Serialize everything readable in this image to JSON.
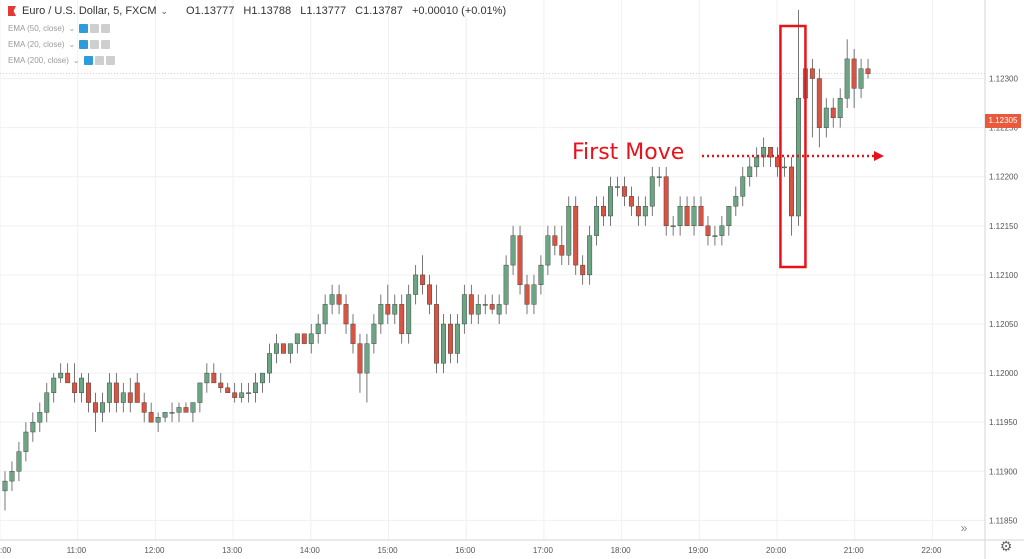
{
  "header": {
    "symbol": "Euro / U.S. Dollar, 5, FXCM",
    "open": "O1.13777",
    "high": "H1.13788",
    "low": "L1.13777",
    "close": "C1.13787",
    "change": "+0.00010 (+0.01%)"
  },
  "indicators": [
    {
      "label": "EMA (50, close)"
    },
    {
      "label": "EMA (20, close)"
    },
    {
      "label": "EMA (200, close)"
    }
  ],
  "annotation": {
    "text": "First Move"
  },
  "price_tag": "1.12305",
  "colors": {
    "up": "#6ba583",
    "down": "#d75442",
    "annotation": "#e8131a",
    "price_tag": "#e95a3c"
  },
  "icons": {
    "scroll_right": "double-chevron-right-icon",
    "settings": "gear-icon"
  },
  "chart_data": {
    "type": "candlestick",
    "y_axis_ticks": [
      "1.12300",
      "1.12250",
      "1.12200",
      "1.12150",
      "1.12100",
      "1.12050",
      "1.12000",
      "1.11950",
      "1.11900",
      "1.11850"
    ],
    "x_axis_ticks": [
      ":00",
      "11:00",
      "12:00",
      "13:00",
      "14:00",
      "15:00",
      "16:00",
      "17:00",
      "18:00",
      "19:00",
      "20:00",
      "21:00",
      "22:00"
    ],
    "ylim": [
      1.1183,
      1.1238
    ],
    "grid": true,
    "candles": [
      {
        "o": 1.1188,
        "h": 1.119,
        "l": 1.1186,
        "c": 1.1189
      },
      {
        "o": 1.1189,
        "h": 1.1191,
        "l": 1.1188,
        "c": 1.119
      },
      {
        "o": 1.119,
        "h": 1.1193,
        "l": 1.1189,
        "c": 1.1192
      },
      {
        "o": 1.1192,
        "h": 1.1195,
        "l": 1.1191,
        "c": 1.1194
      },
      {
        "o": 1.1194,
        "h": 1.1196,
        "l": 1.1193,
        "c": 1.1195
      },
      {
        "o": 1.1195,
        "h": 1.1197,
        "l": 1.1194,
        "c": 1.1196
      },
      {
        "o": 1.1196,
        "h": 1.1199,
        "l": 1.1195,
        "c": 1.1198
      },
      {
        "o": 1.1198,
        "h": 1.12,
        "l": 1.1197,
        "c": 1.11995
      },
      {
        "o": 1.11995,
        "h": 1.1201,
        "l": 1.1199,
        "c": 1.12
      },
      {
        "o": 1.12,
        "h": 1.1201,
        "l": 1.1199,
        "c": 1.1199
      },
      {
        "o": 1.1199,
        "h": 1.1201,
        "l": 1.1197,
        "c": 1.1198
      },
      {
        "o": 1.1198,
        "h": 1.12,
        "l": 1.1197,
        "c": 1.11995
      },
      {
        "o": 1.1199,
        "h": 1.12,
        "l": 1.1196,
        "c": 1.1197
      },
      {
        "o": 1.1197,
        "h": 1.1198,
        "l": 1.1194,
        "c": 1.1196
      },
      {
        "o": 1.1196,
        "h": 1.1198,
        "l": 1.1195,
        "c": 1.1197
      },
      {
        "o": 1.1197,
        "h": 1.12,
        "l": 1.1196,
        "c": 1.1199
      },
      {
        "o": 1.1199,
        "h": 1.12,
        "l": 1.1196,
        "c": 1.1197
      },
      {
        "o": 1.1197,
        "h": 1.1199,
        "l": 1.1196,
        "c": 1.1198
      },
      {
        "o": 1.1198,
        "h": 1.11995,
        "l": 1.1196,
        "c": 1.1197
      },
      {
        "o": 1.1199,
        "h": 1.12,
        "l": 1.1197,
        "c": 1.1197
      },
      {
        "o": 1.1197,
        "h": 1.1198,
        "l": 1.1195,
        "c": 1.1196
      },
      {
        "o": 1.1196,
        "h": 1.1197,
        "l": 1.1195,
        "c": 1.1195
      },
      {
        "o": 1.1195,
        "h": 1.1196,
        "l": 1.1194,
        "c": 1.11955
      },
      {
        "o": 1.11955,
        "h": 1.1196,
        "l": 1.1195,
        "c": 1.1196
      },
      {
        "o": 1.1196,
        "h": 1.1197,
        "l": 1.1195,
        "c": 1.1196
      },
      {
        "o": 1.1196,
        "h": 1.1197,
        "l": 1.1195,
        "c": 1.11965
      },
      {
        "o": 1.11965,
        "h": 1.1197,
        "l": 1.1196,
        "c": 1.1196
      },
      {
        "o": 1.1196,
        "h": 1.1197,
        "l": 1.1195,
        "c": 1.1197
      },
      {
        "o": 1.1197,
        "h": 1.1199,
        "l": 1.1196,
        "c": 1.1199
      },
      {
        "o": 1.1199,
        "h": 1.1201,
        "l": 1.1198,
        "c": 1.12
      },
      {
        "o": 1.12,
        "h": 1.1201,
        "l": 1.1199,
        "c": 1.1199
      },
      {
        "o": 1.1199,
        "h": 1.12,
        "l": 1.1198,
        "c": 1.11985
      },
      {
        "o": 1.11985,
        "h": 1.1199,
        "l": 1.1198,
        "c": 1.1198
      },
      {
        "o": 1.1198,
        "h": 1.1199,
        "l": 1.1197,
        "c": 1.11975
      },
      {
        "o": 1.11975,
        "h": 1.1199,
        "l": 1.1197,
        "c": 1.1198
      },
      {
        "o": 1.1198,
        "h": 1.1199,
        "l": 1.1197,
        "c": 1.1198
      },
      {
        "o": 1.1198,
        "h": 1.12,
        "l": 1.1197,
        "c": 1.1199
      },
      {
        "o": 1.1199,
        "h": 1.12,
        "l": 1.1198,
        "c": 1.12
      },
      {
        "o": 1.12,
        "h": 1.1203,
        "l": 1.1199,
        "c": 1.1202
      },
      {
        "o": 1.1202,
        "h": 1.1204,
        "l": 1.1201,
        "c": 1.1203
      },
      {
        "o": 1.1203,
        "h": 1.1203,
        "l": 1.1202,
        "c": 1.1202
      },
      {
        "o": 1.1202,
        "h": 1.1203,
        "l": 1.1201,
        "c": 1.1203
      },
      {
        "o": 1.1203,
        "h": 1.1204,
        "l": 1.1202,
        "c": 1.1204
      },
      {
        "o": 1.1204,
        "h": 1.1204,
        "l": 1.1203,
        "c": 1.1203
      },
      {
        "o": 1.1203,
        "h": 1.1205,
        "l": 1.1202,
        "c": 1.1204
      },
      {
        "o": 1.1204,
        "h": 1.1206,
        "l": 1.1203,
        "c": 1.1205
      },
      {
        "o": 1.1205,
        "h": 1.1208,
        "l": 1.1204,
        "c": 1.1207
      },
      {
        "o": 1.1207,
        "h": 1.1209,
        "l": 1.1206,
        "c": 1.1208
      },
      {
        "o": 1.1208,
        "h": 1.1209,
        "l": 1.1206,
        "c": 1.1207
      },
      {
        "o": 1.1207,
        "h": 1.1208,
        "l": 1.1204,
        "c": 1.1205
      },
      {
        "o": 1.1205,
        "h": 1.1206,
        "l": 1.1202,
        "c": 1.1203
      },
      {
        "o": 1.1203,
        "h": 1.1204,
        "l": 1.1198,
        "c": 1.12
      },
      {
        "o": 1.12,
        "h": 1.1204,
        "l": 1.1197,
        "c": 1.1203
      },
      {
        "o": 1.1203,
        "h": 1.1206,
        "l": 1.1202,
        "c": 1.1205
      },
      {
        "o": 1.1205,
        "h": 1.1208,
        "l": 1.1204,
        "c": 1.1207
      },
      {
        "o": 1.1207,
        "h": 1.1209,
        "l": 1.1205,
        "c": 1.1206
      },
      {
        "o": 1.1206,
        "h": 1.1208,
        "l": 1.1205,
        "c": 1.1207
      },
      {
        "o": 1.1207,
        "h": 1.1208,
        "l": 1.1203,
        "c": 1.1204
      },
      {
        "o": 1.1204,
        "h": 1.1209,
        "l": 1.1203,
        "c": 1.1208
      },
      {
        "o": 1.1208,
        "h": 1.1211,
        "l": 1.1207,
        "c": 1.121
      },
      {
        "o": 1.121,
        "h": 1.1212,
        "l": 1.1208,
        "c": 1.1209
      },
      {
        "o": 1.1209,
        "h": 1.121,
        "l": 1.1206,
        "c": 1.1207
      },
      {
        "o": 1.1207,
        "h": 1.1209,
        "l": 1.12,
        "c": 1.1201
      },
      {
        "o": 1.1201,
        "h": 1.1206,
        "l": 1.12,
        "c": 1.1205
      },
      {
        "o": 1.1205,
        "h": 1.1206,
        "l": 1.1201,
        "c": 1.1202
      },
      {
        "o": 1.1202,
        "h": 1.1206,
        "l": 1.1201,
        "c": 1.1205
      },
      {
        "o": 1.1205,
        "h": 1.1209,
        "l": 1.1204,
        "c": 1.1208
      },
      {
        "o": 1.1208,
        "h": 1.1209,
        "l": 1.1205,
        "c": 1.1206
      },
      {
        "o": 1.1206,
        "h": 1.1208,
        "l": 1.1205,
        "c": 1.1207
      },
      {
        "o": 1.1207,
        "h": 1.1208,
        "l": 1.1206,
        "c": 1.1207
      },
      {
        "o": 1.1207,
        "h": 1.1208,
        "l": 1.1206,
        "c": 1.12065
      },
      {
        "o": 1.1206,
        "h": 1.1208,
        "l": 1.1205,
        "c": 1.1207
      },
      {
        "o": 1.1207,
        "h": 1.1212,
        "l": 1.1206,
        "c": 1.1211
      },
      {
        "o": 1.1211,
        "h": 1.1215,
        "l": 1.121,
        "c": 1.1214
      },
      {
        "o": 1.1214,
        "h": 1.1215,
        "l": 1.1208,
        "c": 1.1209
      },
      {
        "o": 1.1209,
        "h": 1.121,
        "l": 1.1206,
        "c": 1.1207
      },
      {
        "o": 1.1207,
        "h": 1.121,
        "l": 1.1206,
        "c": 1.1209
      },
      {
        "o": 1.1209,
        "h": 1.1212,
        "l": 1.1208,
        "c": 1.1211
      },
      {
        "o": 1.1211,
        "h": 1.1215,
        "l": 1.121,
        "c": 1.1214
      },
      {
        "o": 1.1214,
        "h": 1.1215,
        "l": 1.1212,
        "c": 1.1213
      },
      {
        "o": 1.1213,
        "h": 1.1215,
        "l": 1.1211,
        "c": 1.1212
      },
      {
        "o": 1.1212,
        "h": 1.1218,
        "l": 1.1211,
        "c": 1.1217
      },
      {
        "o": 1.1217,
        "h": 1.1218,
        "l": 1.121,
        "c": 1.1211
      },
      {
        "o": 1.1211,
        "h": 1.1212,
        "l": 1.1209,
        "c": 1.121
      },
      {
        "o": 1.121,
        "h": 1.1215,
        "l": 1.1209,
        "c": 1.1214
      },
      {
        "o": 1.1214,
        "h": 1.1218,
        "l": 1.1213,
        "c": 1.1217
      },
      {
        "o": 1.1217,
        "h": 1.1218,
        "l": 1.1215,
        "c": 1.1216
      },
      {
        "o": 1.1216,
        "h": 1.122,
        "l": 1.1215,
        "c": 1.1219
      },
      {
        "o": 1.1219,
        "h": 1.122,
        "l": 1.1218,
        "c": 1.1219
      },
      {
        "o": 1.1219,
        "h": 1.122,
        "l": 1.1217,
        "c": 1.1218
      },
      {
        "o": 1.1218,
        "h": 1.1219,
        "l": 1.1216,
        "c": 1.1217
      },
      {
        "o": 1.1217,
        "h": 1.1218,
        "l": 1.1215,
        "c": 1.1216
      },
      {
        "o": 1.1216,
        "h": 1.1218,
        "l": 1.1215,
        "c": 1.1217
      },
      {
        "o": 1.1217,
        "h": 1.1221,
        "l": 1.1216,
        "c": 1.122
      },
      {
        "o": 1.122,
        "h": 1.1221,
        "l": 1.1219,
        "c": 1.122
      },
      {
        "o": 1.122,
        "h": 1.1221,
        "l": 1.1214,
        "c": 1.1215
      },
      {
        "o": 1.1215,
        "h": 1.1216,
        "l": 1.1214,
        "c": 1.1215
      },
      {
        "o": 1.1215,
        "h": 1.1218,
        "l": 1.1214,
        "c": 1.1217
      },
      {
        "o": 1.1217,
        "h": 1.1218,
        "l": 1.1215,
        "c": 1.1215
      },
      {
        "o": 1.1215,
        "h": 1.1218,
        "l": 1.1214,
        "c": 1.1217
      },
      {
        "o": 1.1217,
        "h": 1.1218,
        "l": 1.1215,
        "c": 1.1215
      },
      {
        "o": 1.1215,
        "h": 1.1216,
        "l": 1.1213,
        "c": 1.1214
      },
      {
        "o": 1.1214,
        "h": 1.1215,
        "l": 1.1213,
        "c": 1.1214
      },
      {
        "o": 1.1214,
        "h": 1.1216,
        "l": 1.1213,
        "c": 1.1215
      },
      {
        "o": 1.1215,
        "h": 1.1217,
        "l": 1.1214,
        "c": 1.1217
      },
      {
        "o": 1.1217,
        "h": 1.1219,
        "l": 1.1216,
        "c": 1.1218
      },
      {
        "o": 1.1218,
        "h": 1.1221,
        "l": 1.1217,
        "c": 1.122
      },
      {
        "o": 1.122,
        "h": 1.1222,
        "l": 1.1219,
        "c": 1.1221
      },
      {
        "o": 1.1221,
        "h": 1.1223,
        "l": 1.122,
        "c": 1.1222
      },
      {
        "o": 1.1222,
        "h": 1.1224,
        "l": 1.1221,
        "c": 1.1223
      },
      {
        "o": 1.1223,
        "h": 1.1223,
        "l": 1.1221,
        "c": 1.1222
      },
      {
        "o": 1.1222,
        "h": 1.1223,
        "l": 1.122,
        "c": 1.1221
      },
      {
        "o": 1.1221,
        "h": 1.1222,
        "l": 1.122,
        "c": 1.1221
      },
      {
        "o": 1.1221,
        "h": 1.1222,
        "l": 1.1214,
        "c": 1.1216
      },
      {
        "o": 1.1216,
        "h": 1.1237,
        "l": 1.1215,
        "c": 1.1228
      },
      {
        "o": 1.1228,
        "h": 1.1232,
        "l": 1.1227,
        "c": 1.1231
      },
      {
        "o": 1.1231,
        "h": 1.1232,
        "l": 1.1224,
        "c": 1.123
      },
      {
        "o": 1.123,
        "h": 1.1231,
        "l": 1.1223,
        "c": 1.1225
      },
      {
        "o": 1.1225,
        "h": 1.1228,
        "l": 1.1224,
        "c": 1.1227
      },
      {
        "o": 1.1227,
        "h": 1.1228,
        "l": 1.1225,
        "c": 1.1226
      },
      {
        "o": 1.1226,
        "h": 1.1229,
        "l": 1.1225,
        "c": 1.1228
      },
      {
        "o": 1.1228,
        "h": 1.1234,
        "l": 1.1227,
        "c": 1.1232
      },
      {
        "o": 1.1232,
        "h": 1.1233,
        "l": 1.1227,
        "c": 1.1229
      },
      {
        "o": 1.1229,
        "h": 1.1232,
        "l": 1.1228,
        "c": 1.1231
      },
      {
        "o": 1.1231,
        "h": 1.1232,
        "l": 1.123,
        "c": 1.12305
      }
    ]
  }
}
